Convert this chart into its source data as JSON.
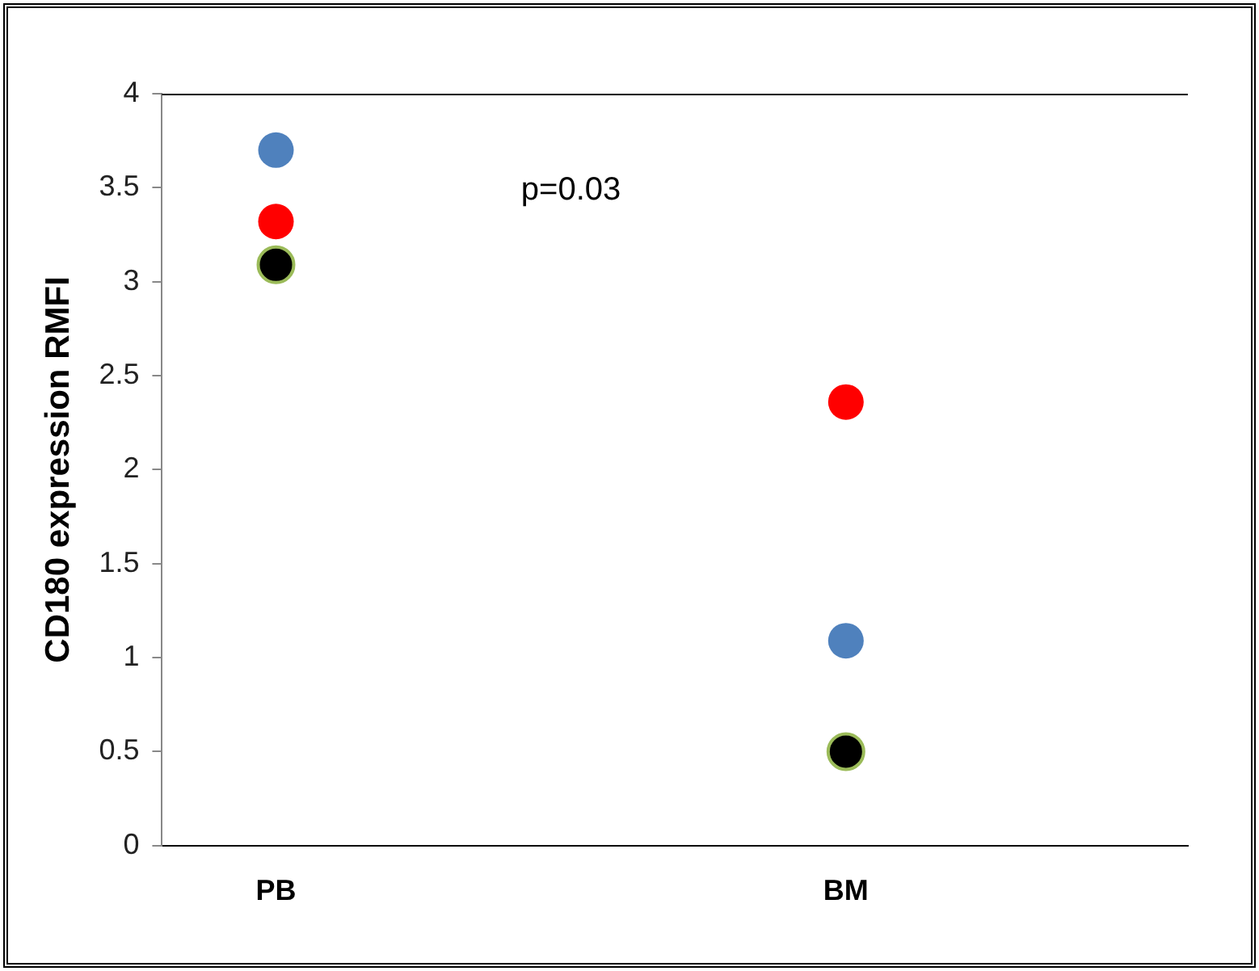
{
  "chart_data": {
    "type": "scatter",
    "ylabel": "CD180 expression RMFI",
    "categories": [
      "PB",
      "BM"
    ],
    "series": [
      {
        "color": "#4f81bd",
        "values": [
          3.7,
          1.09
        ]
      },
      {
        "color": "#ff0000",
        "values": [
          3.32,
          2.36
        ]
      },
      {
        "color": "#000000",
        "values": [
          3.09,
          0.5
        ]
      }
    ],
    "ylim": [
      0,
      4
    ],
    "yticks": [
      0,
      0.5,
      1,
      1.5,
      2,
      2.5,
      3,
      3.5,
      4
    ],
    "grid": false,
    "legend": false,
    "marker": "circle",
    "annotations": [
      "p=0.03"
    ]
  }
}
